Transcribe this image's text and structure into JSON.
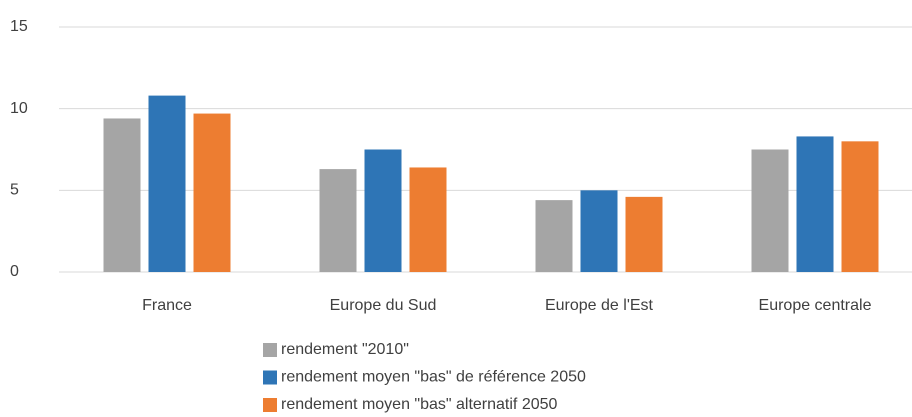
{
  "chart_data": {
    "type": "bar",
    "categories": [
      "France",
      "Europe du Sud",
      "Europe de l'Est",
      "Europe centrale"
    ],
    "series": [
      {
        "name": "rendement \"2010\"",
        "color": "#a5a5a5",
        "values": [
          9.4,
          6.3,
          4.4,
          7.5
        ]
      },
      {
        "name": "rendement moyen \"bas\" de référence 2050",
        "color": "#2e75b6",
        "values": [
          10.8,
          7.5,
          5.0,
          8.3
        ]
      },
      {
        "name": "rendement moyen \"bas\" alternatif 2050",
        "color": "#ed7d31",
        "values": [
          9.7,
          6.4,
          4.6,
          8.0
        ]
      }
    ],
    "ylim": [
      0,
      15
    ],
    "yticks": [
      0,
      5,
      10,
      15
    ],
    "grid": true,
    "legend": "bottom"
  }
}
